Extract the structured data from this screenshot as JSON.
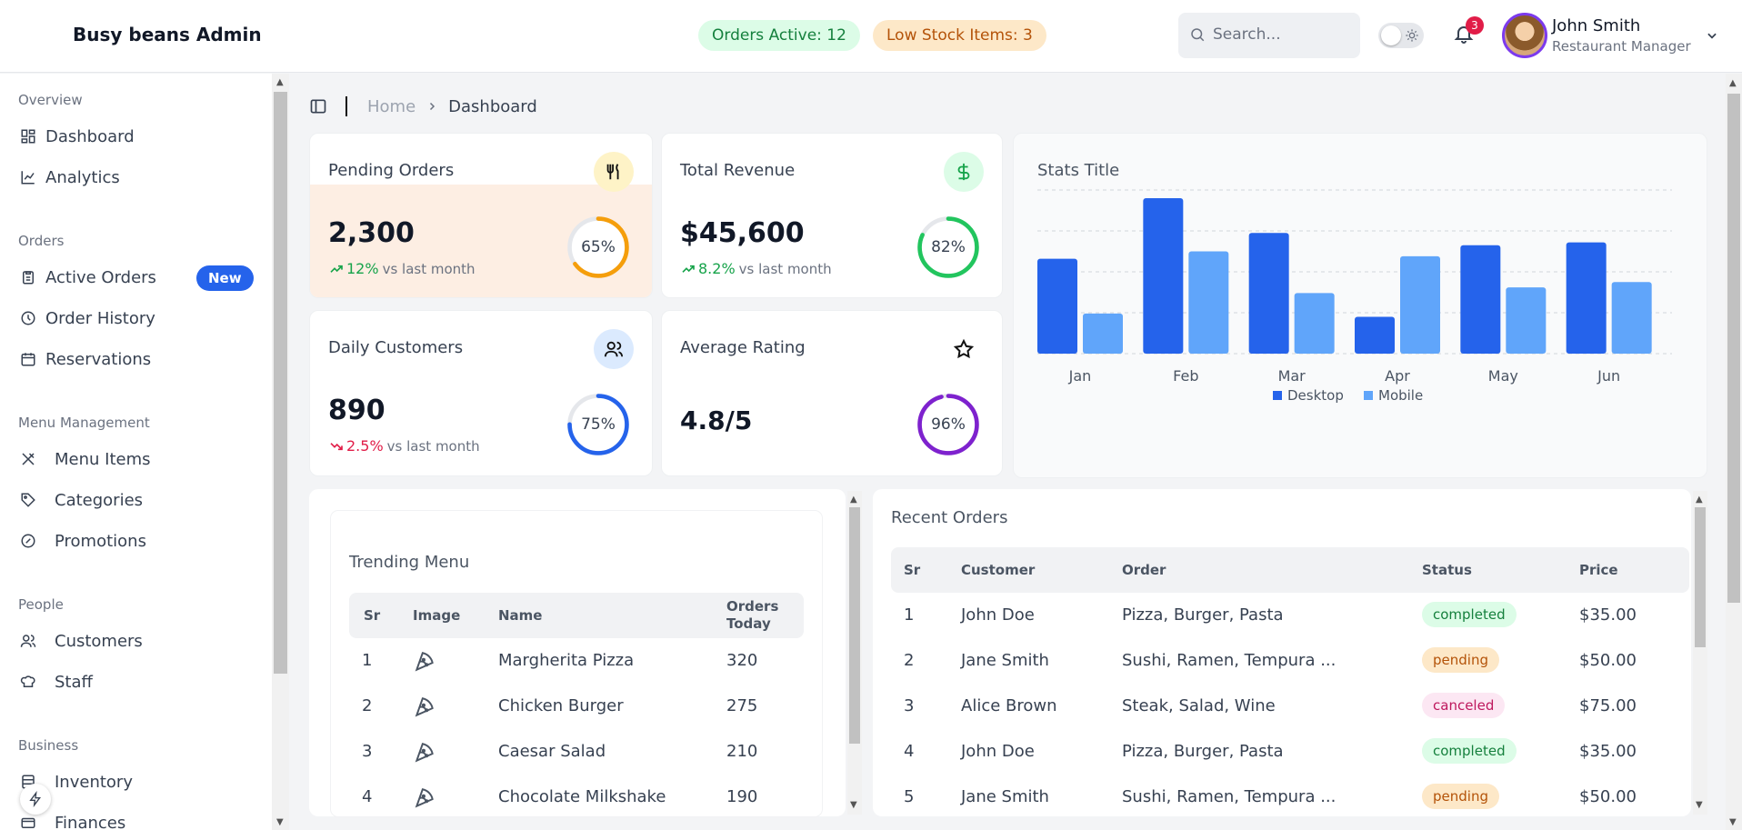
{
  "app": {
    "title": "Busy beans Admin"
  },
  "header": {
    "orders_active": "Orders Active: 12",
    "low_stock": "Low Stock Items: 3",
    "search_placeholder": "Search...",
    "notifications_count": "3",
    "user_name": "John Smith",
    "user_role": "Restaurant Manager"
  },
  "sidebar": {
    "sections": [
      {
        "title": "Overview",
        "items": [
          {
            "label": "Dashboard",
            "icon": "dashboard-icon"
          },
          {
            "label": "Analytics",
            "icon": "analytics-icon"
          }
        ]
      },
      {
        "title": "Orders",
        "items": [
          {
            "label": "Active Orders",
            "icon": "clipboard-icon",
            "badge": "New"
          },
          {
            "label": "Order History",
            "icon": "clock-icon"
          },
          {
            "label": "Reservations",
            "icon": "calendar-icon"
          }
        ]
      },
      {
        "title": "Menu Management",
        "items": [
          {
            "label": "Menu Items",
            "icon": "utensils-icon"
          },
          {
            "label": "Categories",
            "icon": "tag-icon"
          },
          {
            "label": "Promotions",
            "icon": "promo-icon"
          }
        ]
      },
      {
        "title": "People",
        "items": [
          {
            "label": "Customers",
            "icon": "users-icon"
          },
          {
            "label": "Staff",
            "icon": "chef-hat-icon"
          }
        ]
      },
      {
        "title": "Business",
        "items": [
          {
            "label": "Inventory",
            "icon": "inventory-icon"
          },
          {
            "label": "Finances",
            "icon": "finance-icon"
          }
        ]
      }
    ]
  },
  "breadcrumb": {
    "home": "Home",
    "current": "Dashboard"
  },
  "stats": [
    {
      "label": "Pending Orders",
      "value": "2,300",
      "trend": "12%",
      "trend_dir": "up",
      "vs": "vs last month",
      "progress": "65%",
      "ring_color": "#f59e0b",
      "icon": "fork-knife-icon",
      "icon_bg": "#fef3c7"
    },
    {
      "label": "Total Revenue",
      "value": "$45,600",
      "trend": "8.2%",
      "trend_dir": "up",
      "vs": "vs last month",
      "progress": "82%",
      "ring_color": "#22c55e",
      "icon": "dollar-icon",
      "icon_bg": "#dcfce7"
    },
    {
      "label": "Daily Customers",
      "value": "890",
      "trend": "2.5%",
      "trend_dir": "down",
      "vs": "vs last month",
      "progress": "75%",
      "ring_color": "#2563eb",
      "icon": "users-icon",
      "icon_bg": "#dbeafe"
    },
    {
      "label": "Average Rating",
      "value": "4.8/5",
      "progress": "96%",
      "ring_color": "#7e22ce",
      "icon": "star-icon",
      "icon_bg": "#ffffff"
    }
  ],
  "chart_data": {
    "type": "bar",
    "title": "Stats Title",
    "categories": [
      "Jan",
      "Feb",
      "Mar",
      "Apr",
      "May",
      "Jun"
    ],
    "series": [
      {
        "name": "Desktop",
        "color": "#2563eb",
        "values": [
          232,
          380,
          295,
          90,
          265,
          272
        ]
      },
      {
        "name": "Mobile",
        "color": "#60a5fa",
        "values": [
          98,
          250,
          148,
          238,
          162,
          175
        ]
      }
    ],
    "ylim": [
      0,
      400
    ],
    "grid": true,
    "legend": "bottom"
  },
  "trending": {
    "title": "Trending Menu",
    "columns": [
      "Sr",
      "Image",
      "Name",
      "Orders Today"
    ],
    "rows": [
      {
        "sr": "1",
        "name": "Margherita Pizza",
        "orders": "320"
      },
      {
        "sr": "2",
        "name": "Chicken Burger",
        "orders": "275"
      },
      {
        "sr": "3",
        "name": "Caesar Salad",
        "orders": "210"
      },
      {
        "sr": "4",
        "name": "Chocolate Milkshake",
        "orders": "190"
      }
    ]
  },
  "recent": {
    "title": "Recent Orders",
    "columns": [
      "Sr",
      "Customer",
      "Order",
      "Status",
      "Price"
    ],
    "rows": [
      {
        "sr": "1",
        "customer": "John Doe",
        "order": "Pizza, Burger, Pasta",
        "status": "completed",
        "price": "$35.00"
      },
      {
        "sr": "2",
        "customer": "Jane Smith",
        "order": "Sushi, Ramen, Tempura ...",
        "status": "pending",
        "price": "$50.00"
      },
      {
        "sr": "3",
        "customer": "Alice Brown",
        "order": "Steak, Salad, Wine",
        "status": "canceled",
        "price": "$75.00"
      },
      {
        "sr": "4",
        "customer": "John Doe",
        "order": "Pizza, Burger, Pasta",
        "status": "completed",
        "price": "$35.00"
      },
      {
        "sr": "5",
        "customer": "Jane Smith",
        "order": "Sushi, Ramen, Tempura ...",
        "status": "pending",
        "price": "$50.00"
      }
    ]
  }
}
